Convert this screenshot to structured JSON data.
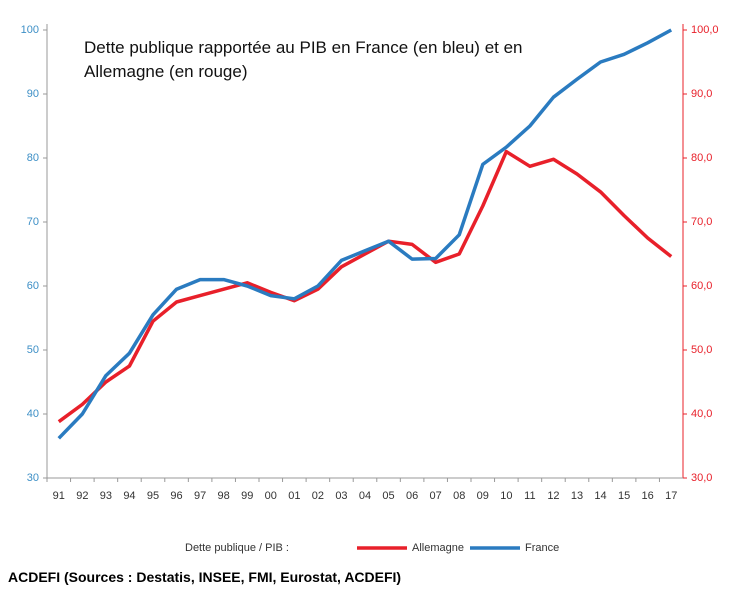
{
  "chart_data": {
    "type": "line",
    "title": "Dette publique rapportée au PIB en France (en bleu) et en Allemagne (en rouge)",
    "legend_label": "Dette publique / PIB :",
    "source": "ACDEFI (Sources : Destatis, INSEE, FMI, Eurostat, ACDEFI)",
    "categories": [
      "91",
      "92",
      "93",
      "94",
      "95",
      "96",
      "97",
      "98",
      "99",
      "00",
      "01",
      "02",
      "03",
      "04",
      "05",
      "06",
      "07",
      "08",
      "09",
      "10",
      "11",
      "12",
      "13",
      "14",
      "15",
      "16",
      "17"
    ],
    "series": [
      {
        "name": "Allemagne",
        "color": "#e8202a",
        "axis": "y2",
        "values": [
          38.8,
          41.5,
          45,
          47.5,
          54.5,
          57.5,
          58.5,
          59.5,
          60.5,
          59,
          57.7,
          59.5,
          63,
          65,
          67,
          66.5,
          63.7,
          65,
          72.5,
          81,
          78.7,
          79.8,
          77.5,
          74.7,
          71,
          67.5,
          64.6
        ]
      },
      {
        "name": "France",
        "color": "#2a7bc0",
        "values": [
          36.2,
          40,
          46,
          49.5,
          55.5,
          59.5,
          61,
          61,
          60,
          58.5,
          58,
          60,
          64,
          65.5,
          67,
          64.2,
          64.3,
          68,
          79,
          81.7,
          85,
          89.5,
          92.3,
          95,
          96.2,
          98,
          100
        ]
      }
    ],
    "ylim": [
      30,
      100
    ],
    "yticks": [
      30,
      40,
      50,
      60,
      70,
      80,
      90,
      100
    ],
    "y2lim": [
      30,
      100
    ],
    "y2ticks": [
      {
        "value": 30,
        "label": "30,0"
      },
      {
        "value": 40,
        "label": "40,0"
      },
      {
        "value": 50,
        "label": "50,0"
      },
      {
        "value": 60,
        "label": "60,0"
      },
      {
        "value": 70,
        "label": "70,0"
      },
      {
        "value": 80,
        "label": "80,0"
      },
      {
        "value": 90,
        "label": "90,0"
      },
      {
        "value": 100,
        "label": "100,0"
      }
    ],
    "ytick_color": "#3d8fc6",
    "y2tick_color": "#e8202a"
  }
}
